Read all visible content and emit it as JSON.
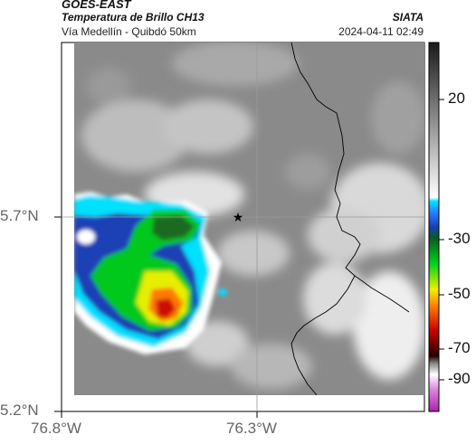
{
  "header": {
    "satellite": "GOES-EAST",
    "product": "Temperatura de Brillo CH13",
    "region": "Vía Medellín - Quibdó 50km",
    "org": "SIATA",
    "datetime": "2024-04-11 02:49"
  },
  "axes": {
    "lat_labels": [
      "5.7°N",
      "5.2°N"
    ],
    "lon_labels": [
      "76.8°W",
      "76.3°W"
    ]
  },
  "colorbar": {
    "labels": [
      "20",
      "-30",
      "-50",
      "-70",
      "-90"
    ],
    "colors": {
      "gray_dark": "#2a2a2a",
      "gray_light": "#f0f0f0",
      "cyan": "#00e5ff",
      "blue": "#1a3fb5",
      "green": "#00d21e",
      "yellow": "#f0f000",
      "orange": "#ff7800",
      "red": "#cc0000",
      "dark_red": "#550000",
      "magenta": "#cc33cc"
    }
  },
  "map": {
    "marker": "star-icon",
    "colors": {
      "cloud_gray": "#8c8c8c",
      "cloud_light": "#d8d8d8",
      "border": "#000000",
      "gridline": "#9a9a9a"
    }
  }
}
